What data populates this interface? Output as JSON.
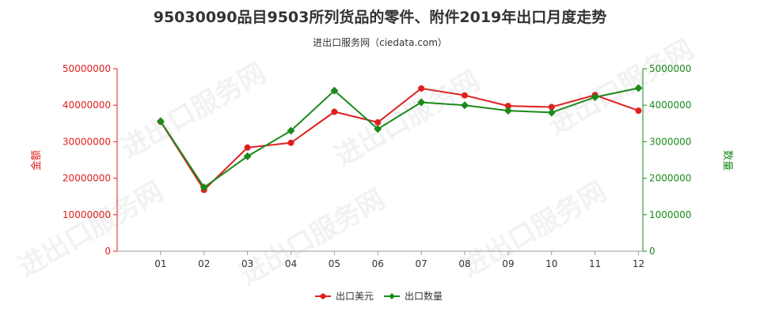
{
  "chart_data": {
    "type": "line",
    "title": "95030090品目9503所列货品的零件、附件2019年出口月度走势",
    "subtitle": "进出口服务网（ciedata.com）",
    "categories": [
      "01",
      "02",
      "03",
      "04",
      "05",
      "06",
      "07",
      "08",
      "09",
      "10",
      "11",
      "12"
    ],
    "y_left": {
      "label": "金额",
      "ylim": [
        0,
        50000000
      ],
      "ticks": [
        "0",
        "10000000",
        "20000000",
        "30000000",
        "40000000",
        "50000000"
      ],
      "color": "#e02020"
    },
    "y_right": {
      "label": "数量",
      "ylim": [
        0,
        5000000
      ],
      "ticks": [
        "0",
        "1000000",
        "2000000",
        "3000000",
        "4000000",
        "5000000"
      ],
      "color": "#1a8a1a"
    },
    "series": [
      {
        "name": "出口美元",
        "axis": "left",
        "color": "#e02020",
        "marker": "circle",
        "values": [
          35500000,
          16800000,
          28400000,
          29700000,
          38200000,
          35300000,
          44600000,
          42700000,
          39800000,
          39500000,
          42800000,
          38500000
        ]
      },
      {
        "name": "出口数量",
        "axis": "right",
        "color": "#1a8a1a",
        "marker": "diamond",
        "values": [
          3560000,
          1750000,
          2600000,
          3300000,
          4400000,
          3350000,
          4080000,
          4000000,
          3850000,
          3800000,
          4220000,
          4470000
        ]
      }
    ],
    "legend_position": "bottom-center",
    "grid": false
  },
  "watermark_text": "进出口服务网"
}
